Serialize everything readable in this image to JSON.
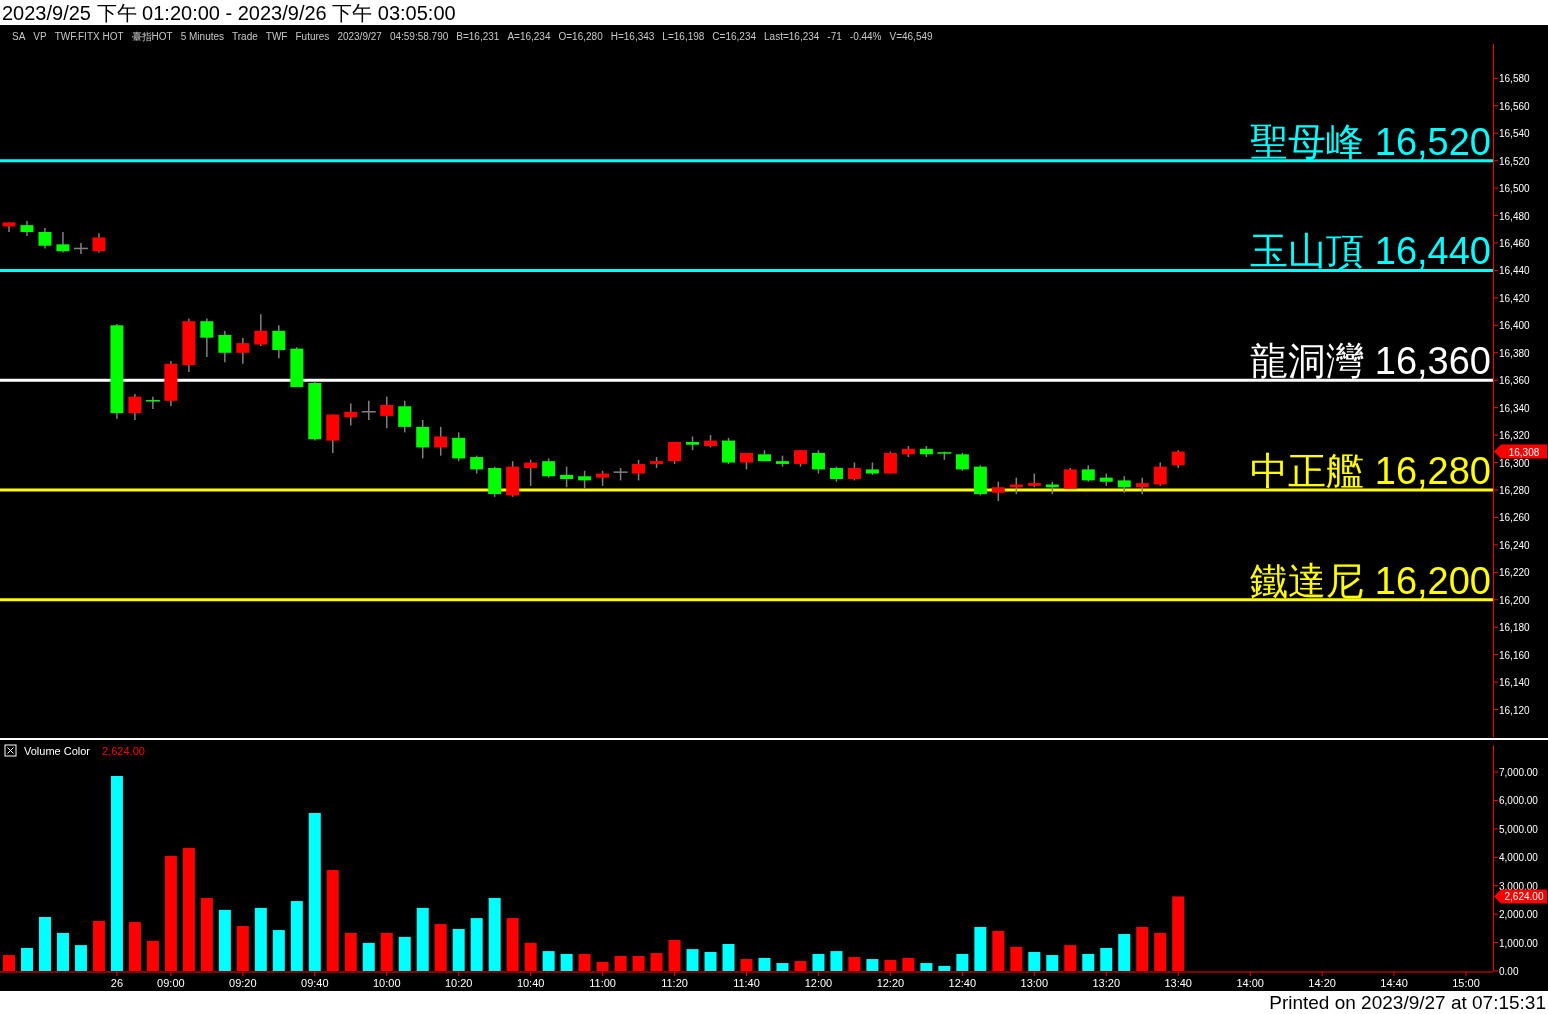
{
  "chart_data": [
    {
      "type": "candlestick",
      "title": "2023/9/25 下午 01:20:00 - 2023/9/26 下午 03:05:00",
      "annotations": [
        "SA",
        "VP",
        "TWF.FITX HOT",
        "臺指HOT",
        "5 Minutes",
        "Trade",
        "TWF",
        "Futures",
        "2023/9/27",
        "04:59:58.790",
        "B=16,231",
        "A=16,234",
        "O=16,280",
        "H=16,343",
        "L=16,198",
        "C=16,234",
        "Last=16,234",
        "-71",
        "-0.44%",
        "V=46,549",
        "16,308"
      ],
      "categories": [
        null,
        null,
        null,
        null,
        null,
        null,
        null,
        null,
        null,
        null,
        null,
        null,
        null,
        null,
        null,
        null,
        null,
        null,
        null,
        null,
        null,
        null,
        null,
        null,
        null,
        null,
        null,
        null,
        null,
        null,
        null,
        null,
        null,
        null,
        null,
        null,
        null,
        null,
        null,
        null,
        null,
        null,
        null,
        null,
        null,
        null,
        null,
        null,
        null,
        null,
        null,
        null,
        null,
        null,
        null,
        null,
        null,
        null,
        null,
        null,
        null,
        null,
        null,
        null,
        null,
        null,
        null,
        null,
        null,
        null,
        null,
        null,
        null,
        null,
        null,
        null,
        null,
        null,
        null,
        null,
        null,
        null,
        null
      ],
      "ohlc": [
        [
          16472,
          16475,
          16468,
          16475
        ],
        [
          16473,
          16476,
          16465,
          16468
        ],
        [
          16468,
          16471,
          16456,
          16458
        ],
        [
          16459,
          16468,
          16453,
          16454
        ],
        [
          16456,
          16460,
          16452,
          16456
        ],
        [
          16454,
          16467,
          16453,
          16464
        ],
        [
          16400,
          16401,
          16332,
          16336
        ],
        [
          16336,
          16350,
          16331,
          16348
        ],
        [
          16345,
          16348,
          16339,
          16344
        ],
        [
          16345,
          16374,
          16341,
          16372
        ],
        [
          16371,
          16405,
          16366,
          16403
        ],
        [
          16403,
          16405,
          16377,
          16391
        ],
        [
          16393,
          16396,
          16373,
          16380
        ],
        [
          16380,
          16391,
          16372,
          16387
        ],
        [
          16386,
          16408,
          16385,
          16396
        ],
        [
          16396,
          16400,
          16376,
          16382
        ],
        [
          16383,
          16384,
          16355,
          16355
        ],
        [
          16358,
          16359,
          16316,
          16317
        ],
        [
          16316,
          16335,
          16307,
          16335
        ],
        [
          16333,
          16343,
          16327,
          16337
        ],
        [
          16337,
          16345,
          16331,
          16337
        ],
        [
          16334,
          16348,
          16325,
          16342
        ],
        [
          16341,
          16345,
          16322,
          16326
        ],
        [
          16326,
          16331,
          16303,
          16311
        ],
        [
          16311,
          16326,
          16305,
          16319
        ],
        [
          16318,
          16322,
          16301,
          16303
        ],
        [
          16304,
          16305,
          16292,
          16295
        ],
        [
          16296,
          16297,
          16275,
          16277
        ],
        [
          16276,
          16301,
          16275,
          16297
        ],
        [
          16296,
          16302,
          16283,
          16300
        ],
        [
          16301,
          16303,
          16289,
          16290
        ],
        [
          16291,
          16297,
          16282,
          16288
        ],
        [
          16290,
          16294,
          16281,
          16287
        ],
        [
          16289,
          16294,
          16283,
          16292
        ],
        [
          16293,
          16296,
          16287,
          16293
        ],
        [
          16292,
          16302,
          16287,
          16299
        ],
        [
          16299,
          16304,
          16296,
          16301
        ],
        [
          16301,
          16315,
          16299,
          16315
        ],
        [
          16315,
          16319,
          16309,
          16313
        ],
        [
          16312,
          16320,
          16311,
          16316
        ],
        [
          16316,
          16318,
          16299,
          16300
        ],
        [
          16300,
          16307,
          16295,
          16307
        ],
        [
          16306,
          16309,
          16301,
          16301
        ],
        [
          16301,
          16305,
          16297,
          16299
        ],
        [
          16299,
          16309,
          16297,
          16309
        ],
        [
          16307,
          16309,
          16292,
          16295
        ],
        [
          16296,
          16297,
          16286,
          16288
        ],
        [
          16288,
          16300,
          16287,
          16296
        ],
        [
          16295,
          16300,
          16291,
          16292
        ],
        [
          16292,
          16308,
          16292,
          16307
        ],
        [
          16306,
          16312,
          16304,
          16310
        ],
        [
          16310,
          16312,
          16304,
          16306
        ],
        [
          16307,
          16308,
          16302,
          16306
        ],
        [
          16306,
          16307,
          16294,
          16295
        ],
        [
          16297,
          16298,
          16276,
          16277
        ],
        [
          16278,
          16286,
          16272,
          16282
        ],
        [
          16282,
          16289,
          16277,
          16284
        ],
        [
          16283,
          16292,
          16282,
          16285
        ],
        [
          16284,
          16286,
          16277,
          16282
        ],
        [
          16281,
          16296,
          16281,
          16295
        ],
        [
          16295,
          16298,
          16286,
          16287
        ],
        [
          16289,
          16292,
          16283,
          16286
        ],
        [
          16287,
          16290,
          16278,
          16282
        ],
        [
          16282,
          16289,
          16277,
          16285
        ],
        [
          16284,
          16300,
          16283,
          16297
        ],
        [
          16298,
          16309,
          16296,
          16308
        ],
        null,
        null,
        null,
        null,
        null,
        null,
        null,
        null,
        null,
        null,
        null,
        null,
        null,
        null,
        null,
        null,
        null
      ],
      "colors": [
        "#ff0000",
        "#00ff00",
        "#00ff00",
        "#00ff00",
        "#808080",
        "#ff0000",
        "#00ff00",
        "#ff0000",
        "#00ff00",
        "#ff0000",
        "#ff0000",
        "#00ff00",
        "#00ff00",
        "#ff0000",
        "#ff0000",
        "#00ff00",
        "#00ff00",
        "#00ff00",
        "#ff0000",
        "#ff0000",
        "#808080",
        "#ff0000",
        "#00ff00",
        "#00ff00",
        "#ff0000",
        "#00ff00",
        "#00ff00",
        "#00ff00",
        "#ff0000",
        "#ff0000",
        "#00ff00",
        "#00ff00",
        "#00ff00",
        "#ff0000",
        "#808080",
        "#ff0000",
        "#ff0000",
        "#ff0000",
        "#00ff00",
        "#ff0000",
        "#00ff00",
        "#ff0000",
        "#00ff00",
        "#00ff00",
        "#ff0000",
        "#00ff00",
        "#00ff00",
        "#ff0000",
        "#00ff00",
        "#ff0000",
        "#ff0000",
        "#00ff00",
        "#00ff00",
        "#00ff00",
        "#00ff00",
        "#ff0000",
        "#ff0000",
        "#ff0000",
        "#00ff00",
        "#ff0000",
        "#00ff00",
        "#00ff00",
        "#00ff00",
        "#ff0000",
        "#ff0000",
        "#ff0000",
        null,
        null,
        null,
        null,
        null,
        null,
        null,
        null,
        null,
        null,
        null,
        null,
        null,
        null,
        null,
        null,
        null
      ],
      "ylim": [
        16100,
        16605
      ],
      "yticks": [
        {
          "value": 16120,
          "label": "16,120"
        },
        {
          "value": 16140,
          "label": "16,140"
        },
        {
          "value": 16160,
          "label": "16,160"
        },
        {
          "value": 16180,
          "label": "16,180"
        },
        {
          "value": 16200,
          "label": "16,200"
        },
        {
          "value": 16220,
          "label": "16,220"
        },
        {
          "value": 16240,
          "label": "16,240"
        },
        {
          "value": 16260,
          "label": "16,260"
        },
        {
          "value": 16280,
          "label": "16,280"
        },
        {
          "value": 16300,
          "label": "16,300"
        },
        {
          "value": 16320,
          "label": "16,320"
        },
        {
          "value": 16340,
          "label": "16,340"
        },
        {
          "value": 16360,
          "label": "16,360"
        },
        {
          "value": 16380,
          "label": "16,380"
        },
        {
          "value": 16400,
          "label": "16,400"
        },
        {
          "value": 16420,
          "label": "16,420"
        },
        {
          "value": 16440,
          "label": "16,440"
        },
        {
          "value": 16460,
          "label": "16,460"
        },
        {
          "value": 16480,
          "label": "16,480"
        },
        {
          "value": 16500,
          "label": "16,500"
        },
        {
          "value": 16520,
          "label": "16,520"
        },
        {
          "value": 16540,
          "label": "16,540"
        },
        {
          "value": 16560,
          "label": "16,560"
        },
        {
          "value": 16580,
          "label": "16,580"
        }
      ],
      "ref_lines": [
        {
          "axis": "y",
          "value": 16520,
          "label": "聖母峰 16,520",
          "color": "#00ffff"
        },
        {
          "axis": "y",
          "value": 16440,
          "label": "玉山頂 16,440",
          "color": "#00ffff"
        },
        {
          "axis": "y",
          "value": 16360,
          "label": "龍洞灣 16,360",
          "color": "#ffffff"
        },
        {
          "axis": "y",
          "value": 16280,
          "label": "中正艦 16,280",
          "color": "#ffff00"
        },
        {
          "axis": "y",
          "value": 16200,
          "label": "鐵達尼 16,200",
          "color": "#ffff00"
        }
      ],
      "tick_labels": "y"
    },
    {
      "type": "bar",
      "title": "Volume Color",
      "annotations": [
        "2,624.00",
        "2,624.00",
        "Printed on 2023/9/27 at 07:15:31"
      ],
      "categories": [
        null,
        null,
        null,
        null,
        null,
        null,
        "26",
        null,
        null,
        "09:00",
        null,
        null,
        null,
        "09:20",
        null,
        null,
        null,
        "09:40",
        null,
        null,
        null,
        "10:00",
        null,
        null,
        null,
        "10:20",
        null,
        null,
        null,
        "10:40",
        null,
        null,
        null,
        "11:00",
        null,
        null,
        null,
        "11:20",
        null,
        null,
        null,
        "11:40",
        null,
        null,
        null,
        "12:00",
        null,
        null,
        null,
        "12:20",
        null,
        null,
        null,
        "12:40",
        null,
        null,
        null,
        "13:00",
        null,
        null,
        null,
        "13:20",
        null,
        null,
        null,
        "13:40",
        null,
        null,
        null,
        "14:00",
        null,
        null,
        null,
        "14:20",
        null,
        null,
        null,
        "14:40",
        null,
        null,
        null,
        "15:00",
        null
      ],
      "values": [
        560,
        810,
        1900,
        1340,
        910,
        1760,
        6860,
        1720,
        1060,
        4050,
        4330,
        2570,
        2150,
        1580,
        2220,
        1440,
        2460,
        5560,
        3550,
        1340,
        990,
        1340,
        1200,
        2220,
        1650,
        1480,
        1860,
        2570,
        1860,
        990,
        700,
        600,
        600,
        320,
        530,
        530,
        630,
        1090,
        770,
        670,
        950,
        420,
        460,
        280,
        350,
        600,
        700,
        490,
        420,
        390,
        460,
        280,
        180,
        600,
        1550,
        1410,
        850,
        670,
        560,
        910,
        600,
        810,
        1300,
        1550,
        1340,
        2624,
        null,
        null,
        null,
        null,
        null,
        null,
        null,
        null,
        null,
        null,
        null,
        null,
        null,
        null,
        null,
        null,
        null
      ],
      "colors": [
        "#ff0000",
        "#00ffff",
        "#00ffff",
        "#00ffff",
        "#00ffff",
        "#ff0000",
        "#00ffff",
        "#ff0000",
        "#ff0000",
        "#ff0000",
        "#ff0000",
        "#ff0000",
        "#00ffff",
        "#ff0000",
        "#00ffff",
        "#00ffff",
        "#00ffff",
        "#00ffff",
        "#ff0000",
        "#ff0000",
        "#00ffff",
        "#ff0000",
        "#00ffff",
        "#00ffff",
        "#ff0000",
        "#00ffff",
        "#00ffff",
        "#00ffff",
        "#ff0000",
        "#ff0000",
        "#00ffff",
        "#00ffff",
        "#ff0000",
        "#ff0000",
        "#ff0000",
        "#ff0000",
        "#ff0000",
        "#ff0000",
        "#00ffff",
        "#00ffff",
        "#00ffff",
        "#ff0000",
        "#00ffff",
        "#00ffff",
        "#ff0000",
        "#00ffff",
        "#00ffff",
        "#ff0000",
        "#00ffff",
        "#ff0000",
        "#ff0000",
        "#00ffff",
        "#00ffff",
        "#00ffff",
        "#00ffff",
        "#ff0000",
        "#ff0000",
        "#00ffff",
        "#00ffff",
        "#ff0000",
        "#00ffff",
        "#00ffff",
        "#00ffff",
        "#ff0000",
        "#ff0000",
        "#ff0000",
        null,
        null,
        null,
        null,
        null,
        null,
        null,
        null,
        null,
        null,
        null,
        null,
        null,
        null,
        null,
        null,
        null
      ],
      "ylim": [
        0,
        7950
      ],
      "yticks": [
        {
          "value": 0,
          "label": "0.00"
        },
        {
          "value": 1000,
          "label": "1,000.00"
        },
        {
          "value": 2000,
          "label": "2,000.00"
        },
        {
          "value": 3000,
          "label": "3,000.00"
        },
        {
          "value": 4000,
          "label": "4,000.00"
        },
        {
          "value": 5000,
          "label": "5,000.00"
        },
        {
          "value": 6000,
          "label": "6,000.00"
        },
        {
          "value": 7000,
          "label": "7,000.00"
        }
      ]
    }
  ]
}
